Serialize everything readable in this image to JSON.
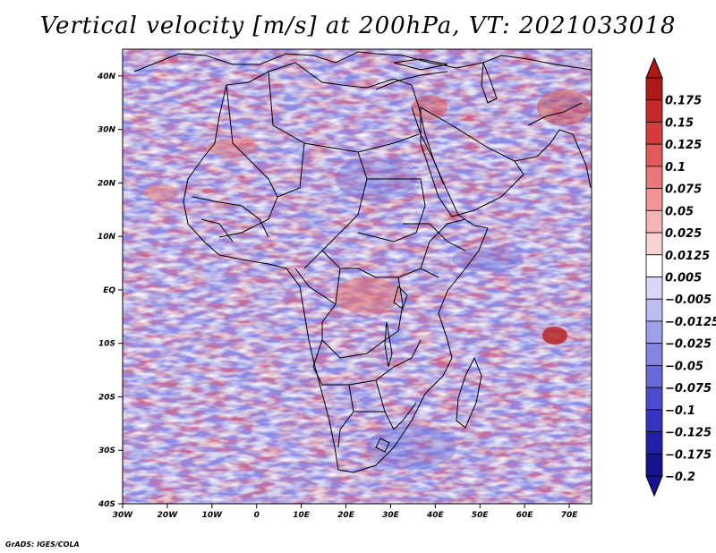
{
  "title": "Vertical velocity [m/s] at 200hPa, VT: 2021033018",
  "credit": "GrADS: IGES/COLA",
  "map": {
    "lon_ticks": [
      "30W",
      "20W",
      "10W",
      "0",
      "10E",
      "20E",
      "30E",
      "40E",
      "50E",
      "60E",
      "70E"
    ],
    "lat_ticks": [
      "40N",
      "30N",
      "20N",
      "10N",
      "EQ",
      "10S",
      "20S",
      "30S",
      "40S"
    ],
    "lon_range": [
      -30,
      75
    ],
    "lat_range": [
      -40,
      45
    ]
  },
  "colorbar": {
    "labels": [
      "0.175",
      "0.15",
      "0.125",
      "0.1",
      "0.075",
      "0.05",
      "0.025",
      "0.0125",
      "0.005",
      "−0.005",
      "−0.0125",
      "−0.025",
      "−0.05",
      "−0.075",
      "−0.1",
      "−0.125",
      "−0.175",
      "−0.2"
    ],
    "colors": [
      "#b01818",
      "#c42a2a",
      "#d63c3c",
      "#e25a5a",
      "#ea7878",
      "#f09696",
      "#f5b4b4",
      "#f9d2d2",
      "#ffffff",
      "#d8d8f6",
      "#bcbcf0",
      "#a0a0ea",
      "#8484e2",
      "#6868da",
      "#4c4cd0",
      "#3434c0",
      "#2020a8",
      "#141490"
    ]
  }
}
